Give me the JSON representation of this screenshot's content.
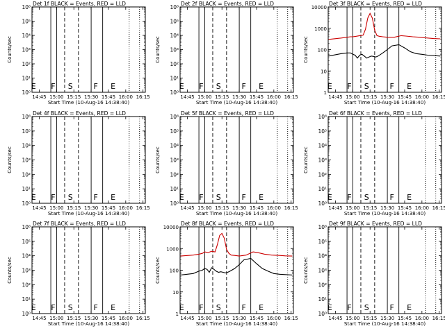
{
  "figure": {
    "background": "#ffffff",
    "axis_color": "#000000"
  },
  "chart_data": [
    {
      "type": "line",
      "title": "Det 1f BLACK = Events, RED = LLD",
      "xlabel": "Start Time (10-Aug-16 14:38:40)",
      "ylabel": "Counts/sec",
      "xticks": [
        "14:45",
        "15:00",
        "15:15",
        "15:30",
        "15:45",
        "16:00",
        "16:15"
      ],
      "yscale": "log",
      "ylim": [
        1,
        1000000
      ],
      "yticks": [
        "10⁰",
        "10¹",
        "10²",
        "10³",
        "10⁴",
        "10⁵",
        "10⁶"
      ],
      "markers": [
        "E",
        "F",
        "S",
        "F",
        "E"
      ],
      "series": []
    },
    {
      "type": "line",
      "title": "Det 2f BLACK = Events, RED = LLD",
      "xlabel": "Start Time (10-Aug-16 14:38:40)",
      "ylabel": "Counts/sec",
      "xticks": [
        "14:45",
        "15:00",
        "15:15",
        "15:30",
        "15:45",
        "16:00",
        "16:15"
      ],
      "yscale": "log",
      "ylim": [
        1,
        1000000
      ],
      "yticks": [
        "10⁰",
        "10¹",
        "10²",
        "10³",
        "10⁴",
        "10⁵",
        "10⁶"
      ],
      "markers": [
        "E",
        "F",
        "S",
        "F",
        "E"
      ],
      "series": []
    },
    {
      "type": "line",
      "title": "Det 3f BLACK = Events, RED = LLD",
      "xlabel": "Start Time (10-Aug-16 14:38:40)",
      "ylabel": "Counts/sec",
      "xticks": [
        "14:45",
        "15:00",
        "15:15",
        "15:30",
        "15:45",
        "16:00",
        "16:15"
      ],
      "yscale": "log",
      "ylim": [
        1,
        10000
      ],
      "yticks": [
        "1",
        "10",
        "100",
        "1000",
        "10000"
      ],
      "markers": [
        "E",
        "F",
        "S",
        "F",
        "E"
      ],
      "series": [
        {
          "color": "#cc0000",
          "x": [
            "14:39",
            "14:50",
            "14:55",
            "14:58",
            "15:00",
            "15:03",
            "15:06",
            "15:09",
            "15:11",
            "15:13",
            "15:15",
            "15:17",
            "15:19",
            "15:21",
            "15:23",
            "15:26",
            "15:30",
            "15:36",
            "15:42",
            "15:46",
            "15:52",
            "15:58",
            "16:05",
            "16:10",
            "16:16"
          ],
          "y": [
            300,
            350,
            380,
            400,
            400,
            420,
            450,
            480,
            900,
            3000,
            5000,
            3000,
            800,
            450,
            420,
            400,
            380,
            380,
            450,
            430,
            400,
            380,
            350,
            330,
            320
          ]
        },
        {
          "color": "#000000",
          "x": [
            "14:39",
            "14:50",
            "14:55",
            "14:58",
            "15:00",
            "15:02",
            "15:04",
            "15:06",
            "15:08",
            "15:10",
            "15:12",
            "15:14",
            "15:16",
            "15:18",
            "15:20",
            "15:22",
            "15:26",
            "15:30",
            "15:34",
            "15:40",
            "15:45",
            "15:50",
            "15:55",
            "16:00",
            "16:05",
            "16:16"
          ],
          "y": [
            50,
            65,
            70,
            70,
            60,
            55,
            40,
            55,
            60,
            50,
            40,
            45,
            50,
            48,
            45,
            50,
            70,
            100,
            150,
            170,
            120,
            80,
            65,
            60,
            55,
            50
          ]
        }
      ]
    },
    {
      "type": "line",
      "title": "Det 4f BLACK = Events, RED = LLD",
      "xlabel": "Start Time (10-Aug-16 14:38:40)",
      "ylabel": "Counts/sec",
      "xticks": [
        "14:45",
        "15:00",
        "15:15",
        "15:30",
        "15:45",
        "16:00",
        "16:15"
      ],
      "yscale": "log",
      "ylim": [
        1,
        1000000
      ],
      "yticks": [
        "10⁰",
        "10¹",
        "10²",
        "10³",
        "10⁴",
        "10⁵",
        "10⁶"
      ],
      "markers": [
        "E",
        "F",
        "S",
        "F",
        "E"
      ],
      "series": []
    },
    {
      "type": "line",
      "title": "Det 5f BLACK = Events, RED = LLD",
      "xlabel": "Start Time (10-Aug-16 14:38:40)",
      "ylabel": "Counts/sec",
      "xticks": [
        "14:45",
        "15:00",
        "15:15",
        "15:30",
        "15:45",
        "16:00",
        "16:15"
      ],
      "yscale": "log",
      "ylim": [
        1,
        1000000
      ],
      "yticks": [
        "10⁰",
        "10¹",
        "10²",
        "10³",
        "10⁴",
        "10⁵",
        "10⁶"
      ],
      "markers": [
        "E",
        "F",
        "S",
        "F",
        "E"
      ],
      "series": []
    },
    {
      "type": "line",
      "title": "Det 6f BLACK = Events, RED = LLD",
      "xlabel": "Start Time (10-Aug-16 14:38:40)",
      "ylabel": "Counts/sec",
      "xticks": [
        "14:45",
        "15:00",
        "15:15",
        "15:30",
        "15:45",
        "16:00",
        "16:15"
      ],
      "yscale": "log",
      "ylim": [
        1,
        1000000
      ],
      "yticks": [
        "10⁰",
        "10¹",
        "10²",
        "10³",
        "10⁴",
        "10⁵",
        "10⁶"
      ],
      "markers": [
        "E",
        "F",
        "S",
        "F",
        "E"
      ],
      "series": []
    },
    {
      "type": "line",
      "title": "Det 7f BLACK = Events, RED = LLD",
      "xlabel": "Start Time (10-Aug-16 14:38:40)",
      "ylabel": "Counts/sec",
      "xticks": [
        "14:45",
        "15:00",
        "15:15",
        "15:30",
        "15:45",
        "16:00",
        "16:15"
      ],
      "yscale": "log",
      "ylim": [
        1,
        1000000
      ],
      "yticks": [
        "10⁰",
        "10¹",
        "10²",
        "10³",
        "10⁴",
        "10⁵",
        "10⁶"
      ],
      "markers": [
        "E",
        "F",
        "S",
        "F",
        "E"
      ],
      "series": []
    },
    {
      "type": "line",
      "title": "Det 8f BLACK = Events, RED = LLD",
      "xlabel": "Start Time (10-Aug-16 14:38:40)",
      "ylabel": "Counts/sec",
      "xticks": [
        "14:45",
        "15:00",
        "15:15",
        "15:30",
        "15:45",
        "16:00",
        "16:15"
      ],
      "yscale": "log",
      "ylim": [
        1,
        10000
      ],
      "yticks": [
        "1",
        "10",
        "100",
        "1000",
        "10000"
      ],
      "markers": [
        "E",
        "F",
        "S",
        "F",
        "E"
      ],
      "series": [
        {
          "color": "#cc0000",
          "x": [
            "14:39",
            "14:50",
            "14:55",
            "14:58",
            "15:00",
            "15:03",
            "15:06",
            "15:09",
            "15:11",
            "15:13",
            "15:15",
            "15:17",
            "15:19",
            "15:21",
            "15:23",
            "15:26",
            "15:30",
            "15:36",
            "15:42",
            "15:46",
            "15:52",
            "15:58",
            "16:05",
            "16:10",
            "16:16"
          ],
          "y": [
            450,
            500,
            550,
            600,
            700,
            650,
            750,
            700,
            1500,
            4000,
            5000,
            3000,
            900,
            600,
            500,
            480,
            450,
            500,
            700,
            650,
            550,
            500,
            480,
            460,
            450
          ]
        },
        {
          "color": "#000000",
          "x": [
            "14:39",
            "14:50",
            "14:55",
            "14:58",
            "15:00",
            "15:02",
            "15:04",
            "15:06",
            "15:08",
            "15:10",
            "15:12",
            "15:14",
            "15:16",
            "15:18",
            "15:20",
            "15:22",
            "15:26",
            "15:30",
            "15:34",
            "15:40",
            "15:45",
            "15:50",
            "15:55",
            "16:00",
            "16:05",
            "16:16"
          ],
          "y": [
            60,
            70,
            90,
            100,
            120,
            110,
            80,
            130,
            110,
            90,
            80,
            85,
            80,
            75,
            80,
            90,
            120,
            180,
            300,
            350,
            200,
            120,
            90,
            70,
            65,
            60
          ]
        }
      ]
    },
    {
      "type": "line",
      "title": "Det 9f BLACK = Events, RED = LLD",
      "xlabel": "Start Time (10-Aug-16 14:38:40)",
      "ylabel": "Counts/sec",
      "xticks": [
        "14:45",
        "15:00",
        "15:15",
        "15:30",
        "15:45",
        "16:00",
        "16:15"
      ],
      "yscale": "log",
      "ylim": [
        1,
        1000000
      ],
      "yticks": [
        "10⁰",
        "10¹",
        "10²",
        "10³",
        "10⁴",
        "10⁵",
        "10⁶"
      ],
      "markers": [
        "E",
        "F",
        "S",
        "F",
        "E"
      ],
      "series": []
    }
  ]
}
